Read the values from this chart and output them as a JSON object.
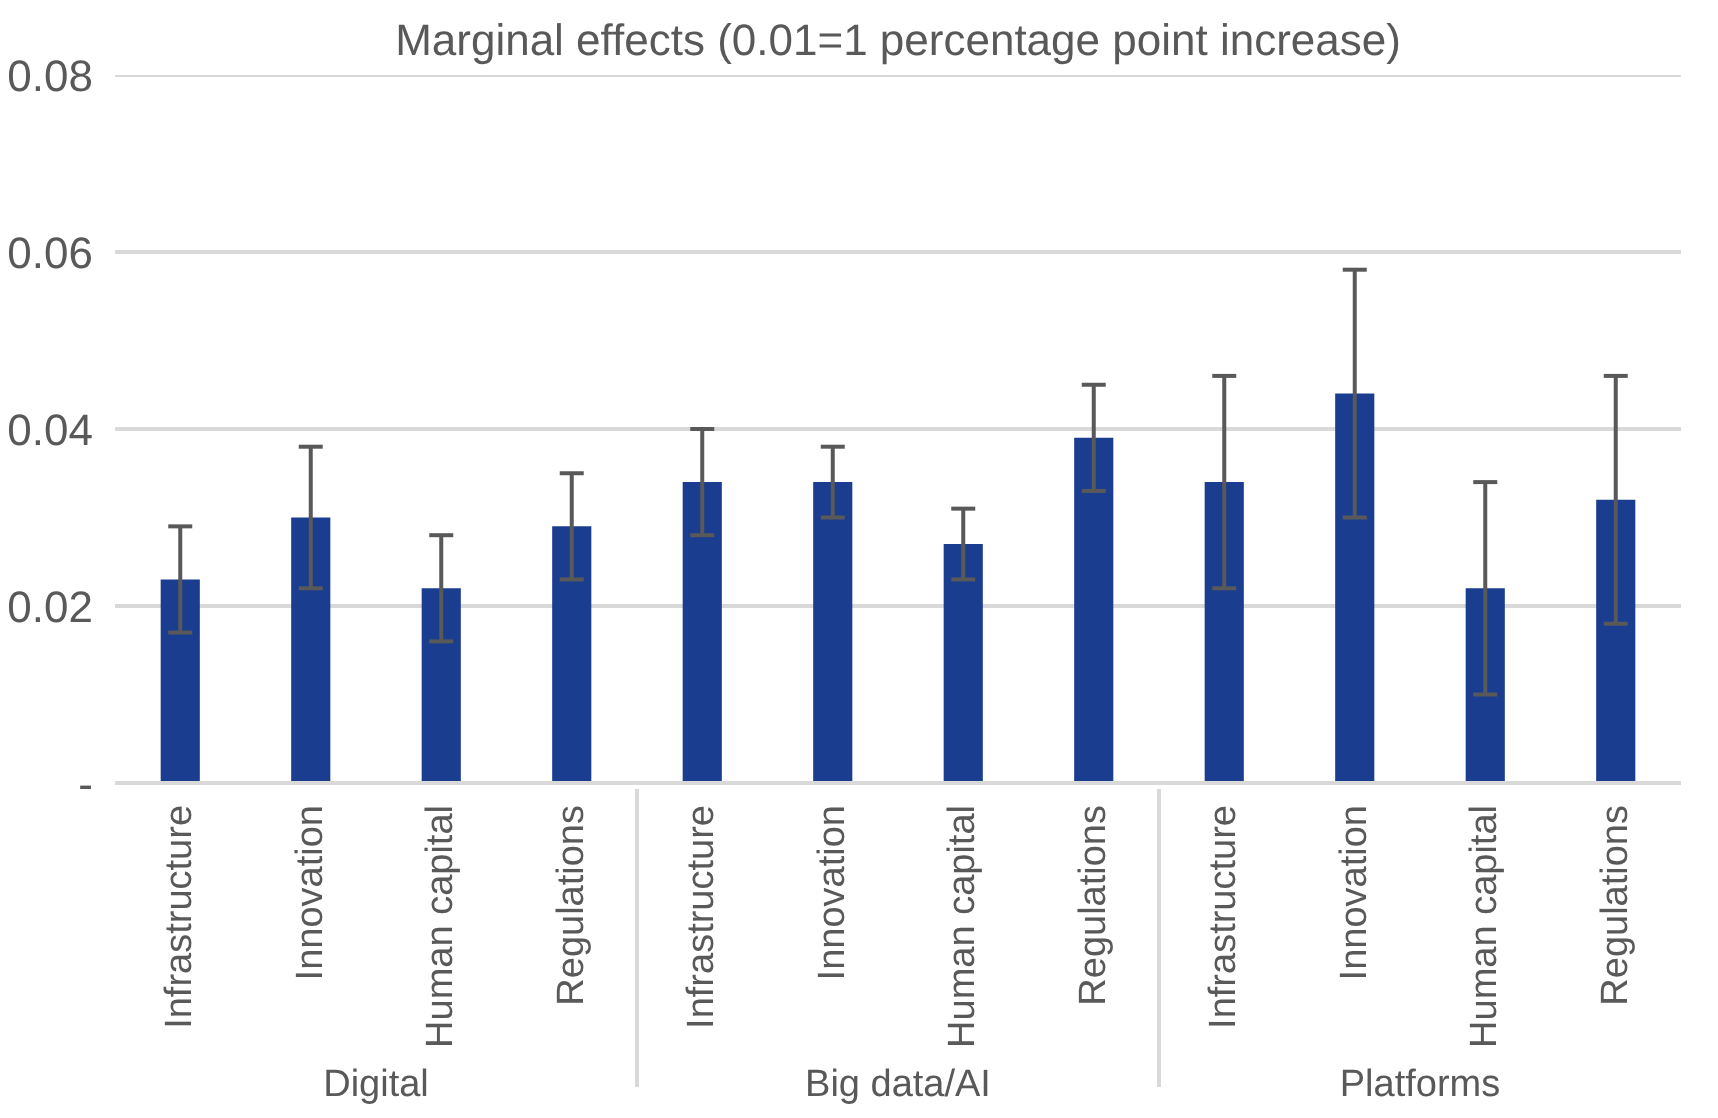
{
  "chart_data": {
    "type": "bar",
    "title": "Marginal effects (0.01=1 percentage point increase)",
    "categories": [
      "Infrastructure",
      "Innovation",
      "Human capital",
      "Regulations",
      "Infrastructure",
      "Innovation",
      "Human capital",
      "Regulations",
      "Infrastructure",
      "Innovation",
      "Human capital",
      "Regulations"
    ],
    "values": [
      0.023,
      0.03,
      0.022,
      0.029,
      0.034,
      0.034,
      0.027,
      0.039,
      0.034,
      0.044,
      0.022,
      0.032
    ],
    "errors": [
      [
        0.017,
        0.029
      ],
      [
        0.022,
        0.038
      ],
      [
        0.016,
        0.028
      ],
      [
        0.023,
        0.035
      ],
      [
        0.028,
        0.04
      ],
      [
        0.03,
        0.038
      ],
      [
        0.023,
        0.031
      ],
      [
        0.033,
        0.045
      ],
      [
        0.022,
        0.046
      ],
      [
        0.03,
        0.058
      ],
      [
        0.01,
        0.034
      ],
      [
        0.018,
        0.046
      ]
    ],
    "color": "#1a3d8f",
    "annotations": [
      "Digital",
      "Big data/AI",
      "Platforms"
    ],
    "ylim": [
      0,
      0.08
    ],
    "yticks": [
      {
        "value": 0,
        "label": "-"
      },
      0.02,
      0.04,
      0.06,
      0.08
    ],
    "grid": "y"
  }
}
